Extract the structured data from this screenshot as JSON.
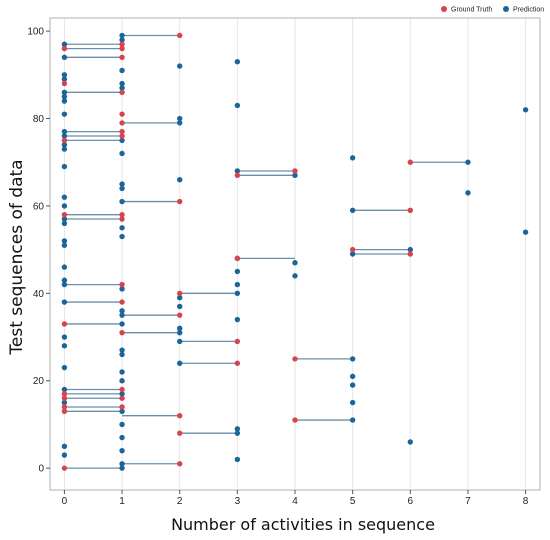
{
  "chart_data": {
    "type": "scatter",
    "xlabel": "Number of activities in sequence",
    "ylabel": "Test  sequences of data",
    "xlim": [
      -0.25,
      8.25
    ],
    "ylim": [
      -5,
      103
    ],
    "x_ticks": [
      0,
      1,
      2,
      3,
      4,
      5,
      6,
      7,
      8
    ],
    "y_ticks": [
      0,
      20,
      40,
      60,
      80,
      100
    ],
    "grid": "vertical",
    "legend_position": "top-right",
    "connector_color": "#6b8fa8",
    "series": [
      {
        "name": "Ground Truth",
        "color": "#d9434e",
        "points": [
          [
            2,
            99
          ],
          [
            1,
            97
          ],
          [
            0,
            96
          ],
          [
            1,
            96
          ],
          [
            1,
            94
          ],
          [
            0,
            88
          ],
          [
            1,
            86
          ],
          [
            1,
            81
          ],
          [
            1,
            79
          ],
          [
            1,
            77
          ],
          [
            1,
            76
          ],
          [
            0,
            75
          ],
          [
            6,
            70
          ],
          [
            3,
            67
          ],
          [
            4,
            68
          ],
          [
            2,
            61
          ],
          [
            1,
            58
          ],
          [
            0,
            58
          ],
          [
            1,
            57
          ],
          [
            6,
            59
          ],
          [
            5,
            50
          ],
          [
            6,
            49
          ],
          [
            3,
            48
          ],
          [
            1,
            42
          ],
          [
            2,
            40
          ],
          [
            1,
            38
          ],
          [
            2,
            35
          ],
          [
            0,
            33
          ],
          [
            1,
            31
          ],
          [
            3,
            29
          ],
          [
            3,
            24
          ],
          [
            4,
            25
          ],
          [
            1,
            18
          ],
          [
            0,
            17
          ],
          [
            0,
            16
          ],
          [
            1,
            16
          ],
          [
            0,
            14
          ],
          [
            1,
            14
          ],
          [
            0,
            13
          ],
          [
            2,
            12
          ],
          [
            2,
            8
          ],
          [
            4,
            11
          ],
          [
            2,
            1
          ],
          [
            0,
            0
          ]
        ]
      },
      {
        "name": "Prediction",
        "color": "#1a6699",
        "points": [
          [
            0,
            97
          ],
          [
            0,
            94
          ],
          [
            0,
            90
          ],
          [
            0,
            89
          ],
          [
            0,
            86
          ],
          [
            0,
            85
          ],
          [
            0,
            84
          ],
          [
            0,
            81
          ],
          [
            0,
            77
          ],
          [
            0,
            76
          ],
          [
            0,
            74
          ],
          [
            0,
            73
          ],
          [
            0,
            69
          ],
          [
            0,
            62
          ],
          [
            0,
            60
          ],
          [
            0,
            57
          ],
          [
            0,
            56
          ],
          [
            0,
            52
          ],
          [
            0,
            51
          ],
          [
            0,
            46
          ],
          [
            0,
            43
          ],
          [
            0,
            42
          ],
          [
            0,
            38
          ],
          [
            0,
            30
          ],
          [
            0,
            28
          ],
          [
            0,
            23
          ],
          [
            0,
            18
          ],
          [
            0,
            15
          ],
          [
            0,
            5
          ],
          [
            0,
            3
          ],
          [
            1,
            99
          ],
          [
            1,
            98
          ],
          [
            1,
            91
          ],
          [
            1,
            88
          ],
          [
            1,
            87
          ],
          [
            1,
            75
          ],
          [
            1,
            72
          ],
          [
            1,
            65
          ],
          [
            1,
            64
          ],
          [
            1,
            61
          ],
          [
            1,
            55
          ],
          [
            1,
            53
          ],
          [
            1,
            41
          ],
          [
            1,
            36
          ],
          [
            1,
            35
          ],
          [
            1,
            33
          ],
          [
            1,
            27
          ],
          [
            1,
            26
          ],
          [
            1,
            22
          ],
          [
            1,
            20
          ],
          [
            1,
            17
          ],
          [
            1,
            13
          ],
          [
            1,
            10
          ],
          [
            1,
            7
          ],
          [
            1,
            4
          ],
          [
            1,
            1
          ],
          [
            1,
            0
          ],
          [
            2,
            92
          ],
          [
            2,
            80
          ],
          [
            2,
            79
          ],
          [
            2,
            66
          ],
          [
            2,
            39
          ],
          [
            2,
            37
          ],
          [
            2,
            32
          ],
          [
            2,
            31
          ],
          [
            2,
            29
          ],
          [
            2,
            24
          ],
          [
            3,
            93
          ],
          [
            3,
            83
          ],
          [
            3,
            68
          ],
          [
            3,
            48
          ],
          [
            3,
            45
          ],
          [
            3,
            42
          ],
          [
            3,
            40
          ],
          [
            3,
            34
          ],
          [
            3,
            9
          ],
          [
            3,
            8
          ],
          [
            3,
            2
          ],
          [
            4,
            67
          ],
          [
            4,
            47
          ],
          [
            4,
            44
          ],
          [
            5,
            71
          ],
          [
            5,
            59
          ],
          [
            5,
            49
          ],
          [
            5,
            25
          ],
          [
            5,
            21
          ],
          [
            5,
            19
          ],
          [
            5,
            15
          ],
          [
            5,
            11
          ],
          [
            6,
            50
          ],
          [
            6,
            6
          ],
          [
            7,
            70
          ],
          [
            7,
            63
          ],
          [
            8,
            82
          ],
          [
            8,
            54
          ]
        ]
      }
    ],
    "connectors": [
      [
        [
          1,
          99
        ],
        [
          2,
          99
        ]
      ],
      [
        [
          0,
          97
        ],
        [
          1,
          97
        ]
      ],
      [
        [
          0,
          96
        ],
        [
          1,
          96
        ]
      ],
      [
        [
          0,
          94
        ],
        [
          1,
          94
        ]
      ],
      [
        [
          0,
          86
        ],
        [
          1,
          86
        ]
      ],
      [
        [
          1,
          79
        ],
        [
          2,
          79
        ]
      ],
      [
        [
          0,
          77
        ],
        [
          1,
          77
        ]
      ],
      [
        [
          0,
          76
        ],
        [
          1,
          76
        ]
      ],
      [
        [
          0,
          75
        ],
        [
          1,
          75
        ]
      ],
      [
        [
          6,
          70
        ],
        [
          7,
          70
        ]
      ],
      [
        [
          3,
          68
        ],
        [
          4,
          68
        ]
      ],
      [
        [
          3,
          67
        ],
        [
          4,
          67
        ]
      ],
      [
        [
          1,
          61
        ],
        [
          2,
          61
        ]
      ],
      [
        [
          5,
          59
        ],
        [
          6,
          59
        ]
      ],
      [
        [
          0,
          58
        ],
        [
          1,
          58
        ]
      ],
      [
        [
          0,
          57
        ],
        [
          1,
          57
        ]
      ],
      [
        [
          5,
          50
        ],
        [
          6,
          50
        ]
      ],
      [
        [
          5,
          49
        ],
        [
          6,
          49
        ]
      ],
      [
        [
          3,
          48
        ],
        [
          4,
          48
        ]
      ],
      [
        [
          0,
          42
        ],
        [
          1,
          42
        ]
      ],
      [
        [
          2,
          40
        ],
        [
          3,
          40
        ]
      ],
      [
        [
          0,
          38
        ],
        [
          1,
          38
        ]
      ],
      [
        [
          1,
          35
        ],
        [
          2,
          35
        ]
      ],
      [
        [
          0,
          33
        ],
        [
          1,
          33
        ]
      ],
      [
        [
          1,
          31
        ],
        [
          2,
          31
        ]
      ],
      [
        [
          2,
          29
        ],
        [
          3,
          29
        ]
      ],
      [
        [
          4,
          25
        ],
        [
          5,
          25
        ]
      ],
      [
        [
          2,
          24
        ],
        [
          3,
          24
        ]
      ],
      [
        [
          0,
          18
        ],
        [
          1,
          18
        ]
      ],
      [
        [
          0,
          17
        ],
        [
          1,
          17
        ]
      ],
      [
        [
          0,
          16
        ],
        [
          1,
          16
        ]
      ],
      [
        [
          0,
          14
        ],
        [
          1,
          14
        ]
      ],
      [
        [
          0,
          13
        ],
        [
          1,
          13
        ]
      ],
      [
        [
          1,
          12
        ],
        [
          2,
          12
        ]
      ],
      [
        [
          4,
          11
        ],
        [
          5,
          11
        ]
      ],
      [
        [
          2,
          8
        ],
        [
          3,
          8
        ]
      ],
      [
        [
          1,
          1
        ],
        [
          2,
          1
        ]
      ],
      [
        [
          0,
          0
        ],
        [
          1,
          0
        ]
      ]
    ]
  }
}
